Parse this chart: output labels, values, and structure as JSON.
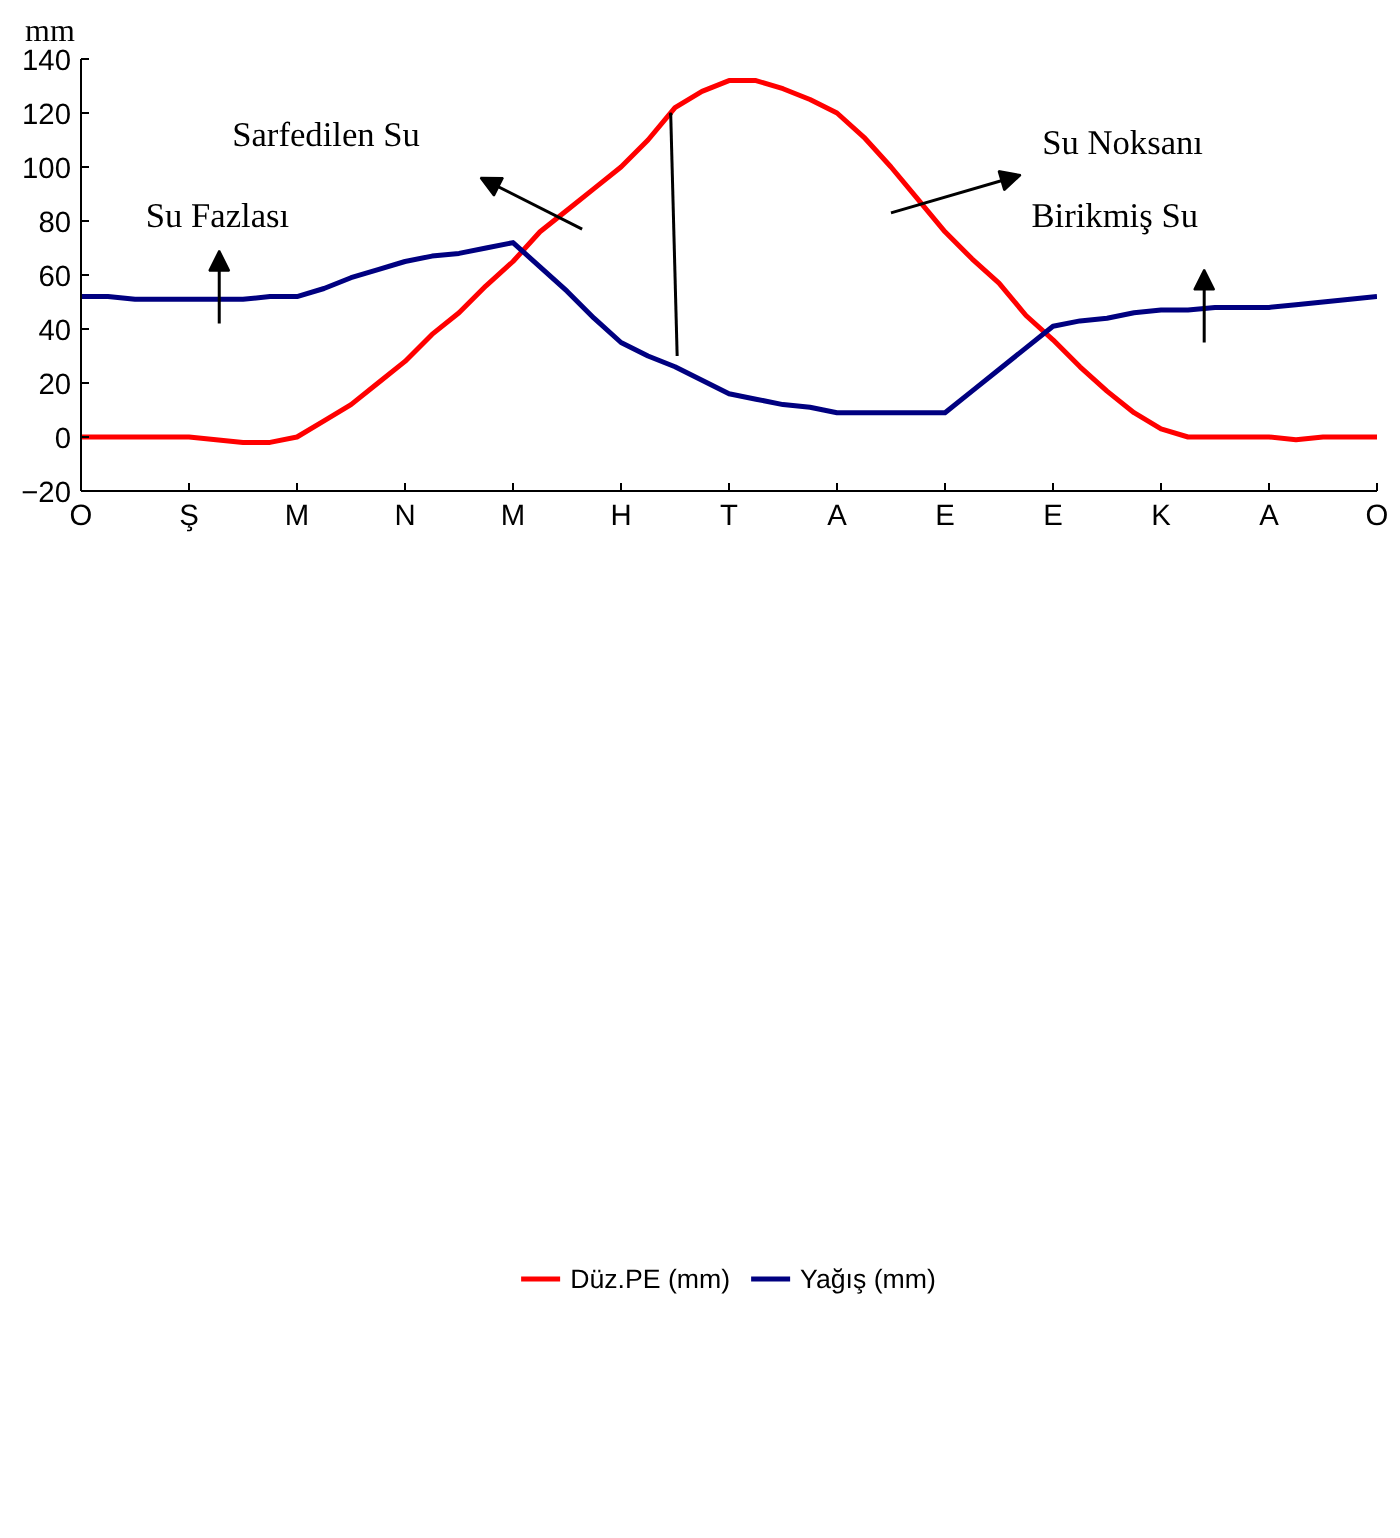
{
  "chart_data": {
    "type": "line",
    "ylabel": "mm",
    "categories": [
      "O",
      null,
      null,
      null,
      "Ş",
      null,
      null,
      null,
      "M",
      null,
      null,
      null,
      "N",
      null,
      null,
      null,
      "M",
      null,
      null,
      null,
      "H",
      null,
      null,
      null,
      "T",
      null,
      null,
      null,
      "A",
      null,
      null,
      null,
      "E",
      null,
      null,
      null,
      "E",
      null,
      null,
      null,
      "K",
      null,
      null,
      null,
      "A",
      null,
      null,
      null,
      "O"
    ],
    "ylim": [
      -20,
      140
    ],
    "yticks": [
      -20,
      0,
      20,
      40,
      60,
      80,
      100,
      120,
      140
    ],
    "grid": false,
    "legend": "bottom",
    "marker": "none",
    "line_style": "solid",
    "series": [
      {
        "name": "Düz.PE (mm)",
        "color": "#ff0000",
        "values": [
          0,
          0,
          0,
          0,
          0,
          -1,
          -2,
          -2,
          0,
          6,
          12,
          20,
          28,
          38,
          46,
          56,
          65,
          76,
          84,
          92,
          100,
          110,
          122,
          128,
          132,
          132,
          129,
          125,
          120,
          111,
          100,
          88,
          76,
          66,
          57,
          45,
          36,
          26,
          17,
          9,
          3,
          0,
          0,
          0,
          0,
          -1,
          0,
          0,
          0
        ]
      },
      {
        "name": "Yağış (mm)",
        "color": "#000080",
        "values": [
          52,
          52,
          51,
          51,
          51,
          51,
          51,
          52,
          52,
          55,
          59,
          62,
          65,
          67,
          68,
          70,
          72,
          63,
          54,
          44,
          35,
          30,
          26,
          21,
          16,
          14,
          12,
          11,
          9,
          9,
          9,
          9,
          9,
          17,
          25,
          33,
          41,
          43,
          44,
          46,
          47,
          47,
          48,
          48,
          48,
          49,
          50,
          51,
          52
        ]
      }
    ],
    "annotations": [
      "Su Fazlası",
      "Sarfedilen Su",
      "Su Noksanı",
      "Birikmiş Su"
    ]
  }
}
